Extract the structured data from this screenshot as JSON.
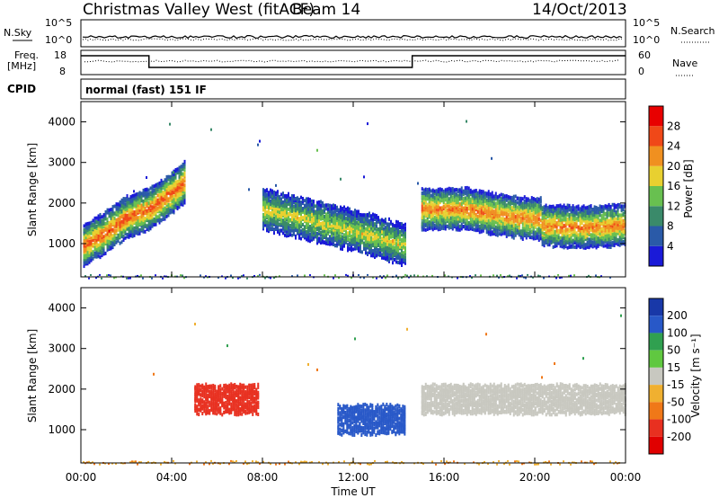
{
  "header": {
    "station": "Christmas Valley West (fitACF)",
    "beam": "Beam 14",
    "date": "14/Oct/2013"
  },
  "noise_panel": {
    "left_label": "N.Sky",
    "right_label": "N.Search",
    "left_ticks": [
      "10^5",
      "10^0"
    ],
    "right_ticks": [
      "10^5",
      "10^0"
    ]
  },
  "freq_panel": {
    "left_label_1": "Freq.",
    "left_label_2": "[MHz]",
    "left_ticks": [
      "18",
      "8"
    ],
    "right_label": "Nave",
    "right_ticks": [
      "60",
      "0"
    ]
  },
  "cpid": {
    "label": "CPID",
    "value": "normal (fast) 151 IF"
  },
  "time_axis": {
    "label": "Time UT",
    "ticks": [
      "00:00",
      "04:00",
      "08:00",
      "12:00",
      "16:00",
      "20:00",
      "00:00"
    ]
  },
  "power_panel": {
    "ylabel": "Slant Range [km]",
    "yticks": [
      "1000",
      "2000",
      "3000",
      "4000"
    ],
    "colorbar_label": "Power [dB]",
    "colorbar_ticks": [
      "4",
      "8",
      "12",
      "16",
      "20",
      "24",
      "28"
    ],
    "colors": [
      "#1a1ad8",
      "#2a5aa8",
      "#3a8a6a",
      "#68c050",
      "#e8d030",
      "#f09020",
      "#f04818",
      "#e80000"
    ]
  },
  "velocity_panel": {
    "ylabel": "Slant Range [km]",
    "yticks": [
      "1000",
      "2000",
      "3000",
      "4000"
    ],
    "colorbar_label": "Velocity [m s⁻¹]",
    "colorbar_ticks": [
      "200",
      "100",
      "50",
      "15",
      "-15",
      "-50",
      "-100",
      "-200"
    ],
    "colors": [
      "#1838a8",
      "#2858c8",
      "#30a050",
      "#60c840",
      "#c8c8c0",
      "#f0b030",
      "#f07818",
      "#e83020",
      "#e00000"
    ]
  },
  "chart_data": {
    "type": "heatmap",
    "x_range_hours": [
      0,
      24
    ],
    "y_range_km": [
      180,
      4500
    ],
    "power_bands": [
      {
        "name": "",
        "t": [
          0.1,
          1.0,
          2.0,
          3.0,
          4.0,
          4.6
        ],
        "range": [
          1000,
          1300,
          1700,
          1900,
          2300,
          2600
        ],
        "value_db": 26
      },
      {
        "name": "",
        "t": [
          8.0,
          9.5,
          11.0,
          12.5,
          14.3
        ],
        "range": [
          1900,
          1700,
          1500,
          1300,
          1000
        ],
        "value_db": 18
      },
      {
        "name": "",
        "t": [
          15.0,
          17.0,
          19.0,
          20.3
        ],
        "range": [
          1900,
          1900,
          1700,
          1650
        ],
        "value_db": 24
      },
      {
        "name": "",
        "t": [
          20.3,
          22.0,
          24.0
        ],
        "range": [
          1500,
          1450,
          1500
        ],
        "value_db": 24
      }
    ],
    "velocity_regions": [
      {
        "t_start": 5.0,
        "t_end": 7.8,
        "range_center": 1800,
        "velocity": -150
      },
      {
        "t_start": 11.3,
        "t_end": 14.3,
        "range_center": 1300,
        "velocity": 120
      },
      {
        "t_start": 15.0,
        "t_end": 24.0,
        "range_center": 1800,
        "velocity": 0
      }
    ]
  }
}
